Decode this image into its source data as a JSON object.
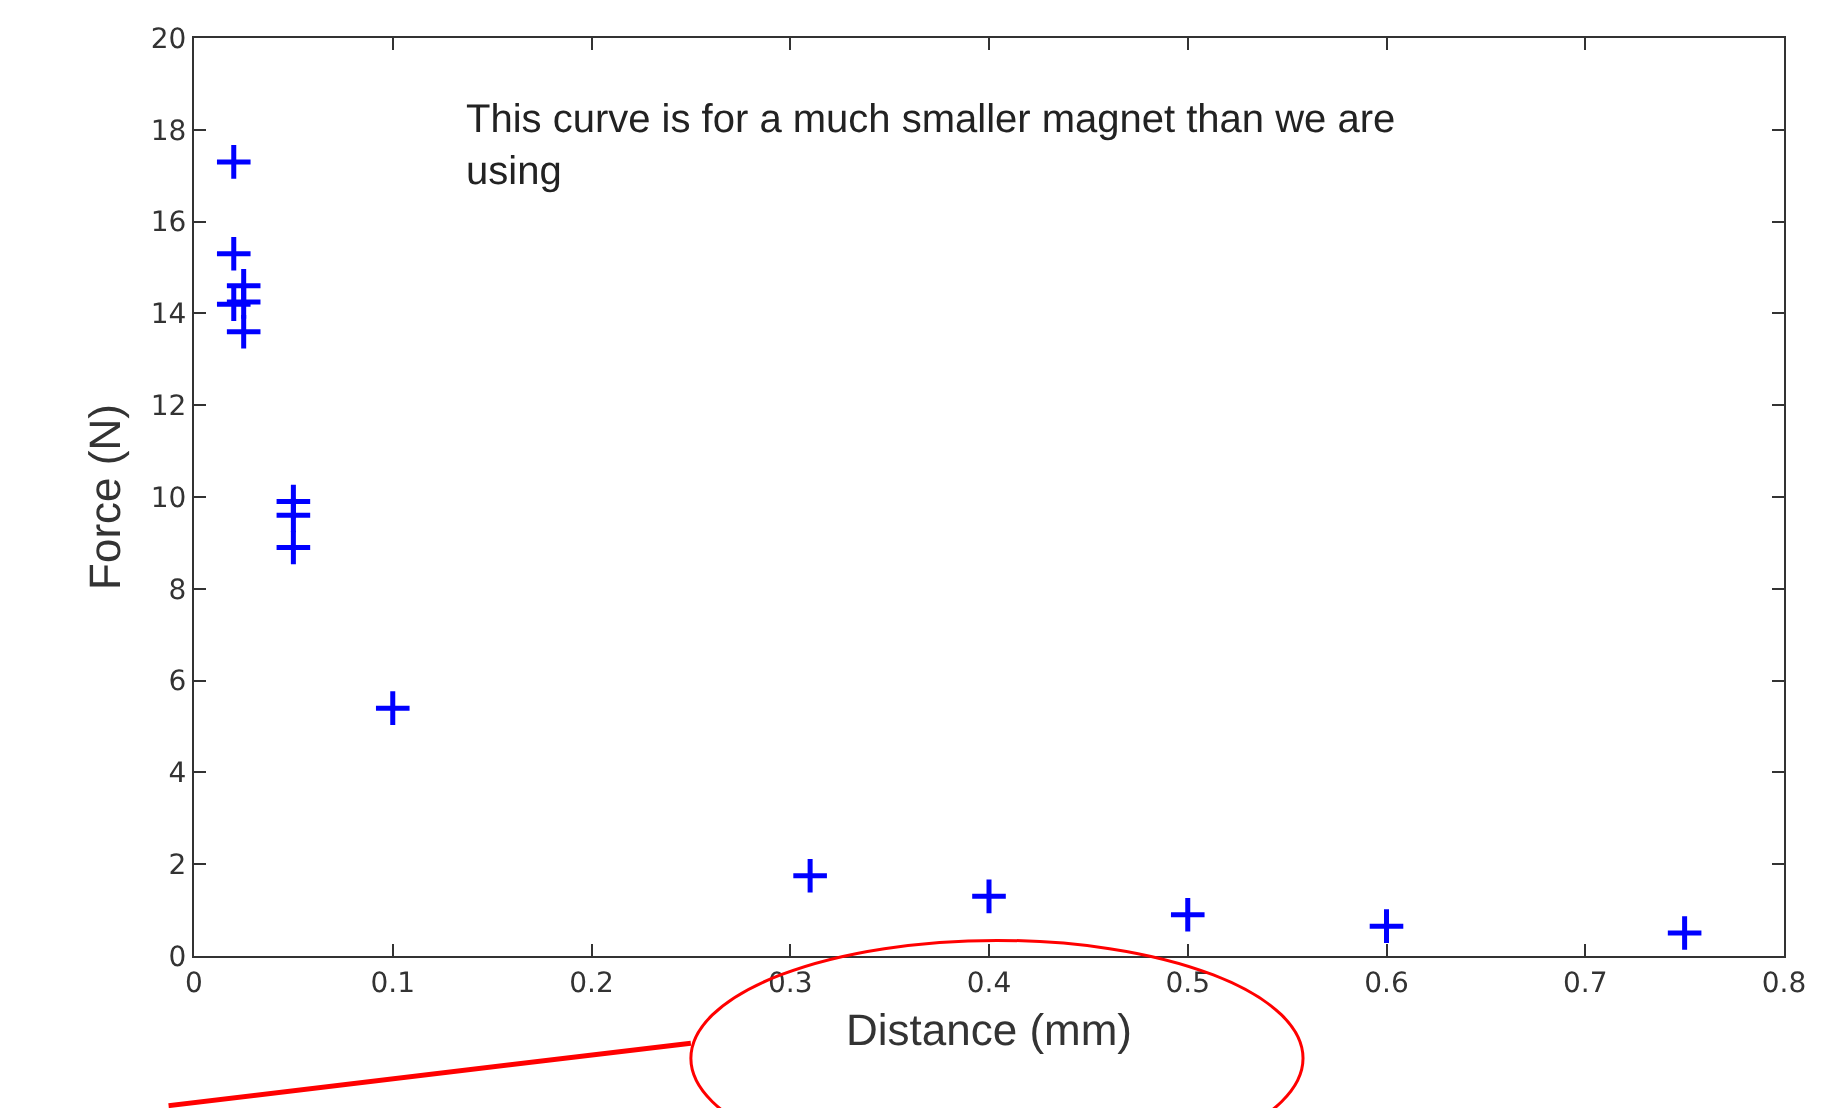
{
  "chart_data": {
    "type": "scatter",
    "xlabel": "Distance (mm)",
    "ylabel": "Force (N)",
    "x": [
      0.02,
      0.02,
      0.025,
      0.02,
      0.025,
      0.025,
      0.05,
      0.05,
      0.05,
      0.1,
      0.31,
      0.4,
      0.5,
      0.6,
      0.75
    ],
    "series": [
      {
        "color": "#0000ff",
        "values": [
          17.3,
          15.3,
          14.6,
          14.2,
          14.25,
          13.6,
          9.9,
          9.6,
          8.9,
          5.4,
          1.75,
          1.3,
          0.9,
          0.65,
          0.5
        ]
      }
    ],
    "marker": "cross",
    "legend": false,
    "xlim": [
      0,
      0.8
    ],
    "xticks": [
      0,
      0.1,
      0.2,
      0.3,
      0.4,
      0.5,
      0.6,
      0.7,
      0.8
    ],
    "ylim": [
      0,
      20
    ],
    "yticks": [
      0,
      2,
      4,
      6,
      8,
      10,
      12,
      14,
      16,
      18,
      20
    ],
    "annotations": [
      "This curve is for a much smaller magnet than we are using"
    ]
  }
}
